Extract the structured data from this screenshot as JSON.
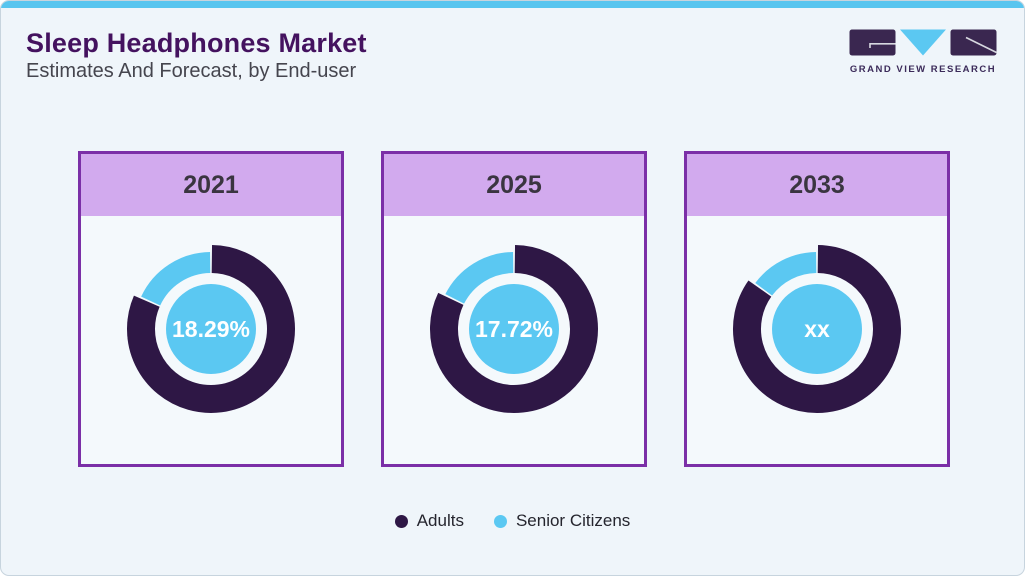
{
  "page": {
    "title": "Sleep Headphones Market",
    "subtitle": "Estimates And Forecast, by End-user"
  },
  "logo": {
    "text": "GRAND VIEW RESEARCH"
  },
  "colors": {
    "accent_bar": "#58c5ef",
    "title_purple": "#44125f",
    "panel_border": "#7b2fa7",
    "panel_header_bg": "#d2aaee",
    "adults": "#2e1745",
    "senior_citizens": "#5bc8f2",
    "background": "#eff5fa"
  },
  "legend": {
    "items": [
      {
        "label": "Adults",
        "color": "#2e1745"
      },
      {
        "label": "Senior Citizens",
        "color": "#5bc8f2"
      }
    ]
  },
  "chart_data": [
    {
      "type": "pie",
      "title": "2021",
      "center_label": "18.29%",
      "series": [
        {
          "name": "Adults",
          "value": 81.71
        },
        {
          "name": "Senior Citizens",
          "value": 18.29
        }
      ],
      "units": "percent",
      "display_fraction": 0.1829
    },
    {
      "type": "pie",
      "title": "2025",
      "center_label": "17.72%",
      "series": [
        {
          "name": "Adults",
          "value": 82.28
        },
        {
          "name": "Senior Citizens",
          "value": 17.72
        }
      ],
      "units": "percent",
      "display_fraction": 0.1772
    },
    {
      "type": "pie",
      "title": "2033",
      "center_label": "xx",
      "series": [
        {
          "name": "Adults",
          "value": null
        },
        {
          "name": "Senior Citizens",
          "value": null
        }
      ],
      "units": "percent",
      "display_fraction": 0.15
    }
  ]
}
